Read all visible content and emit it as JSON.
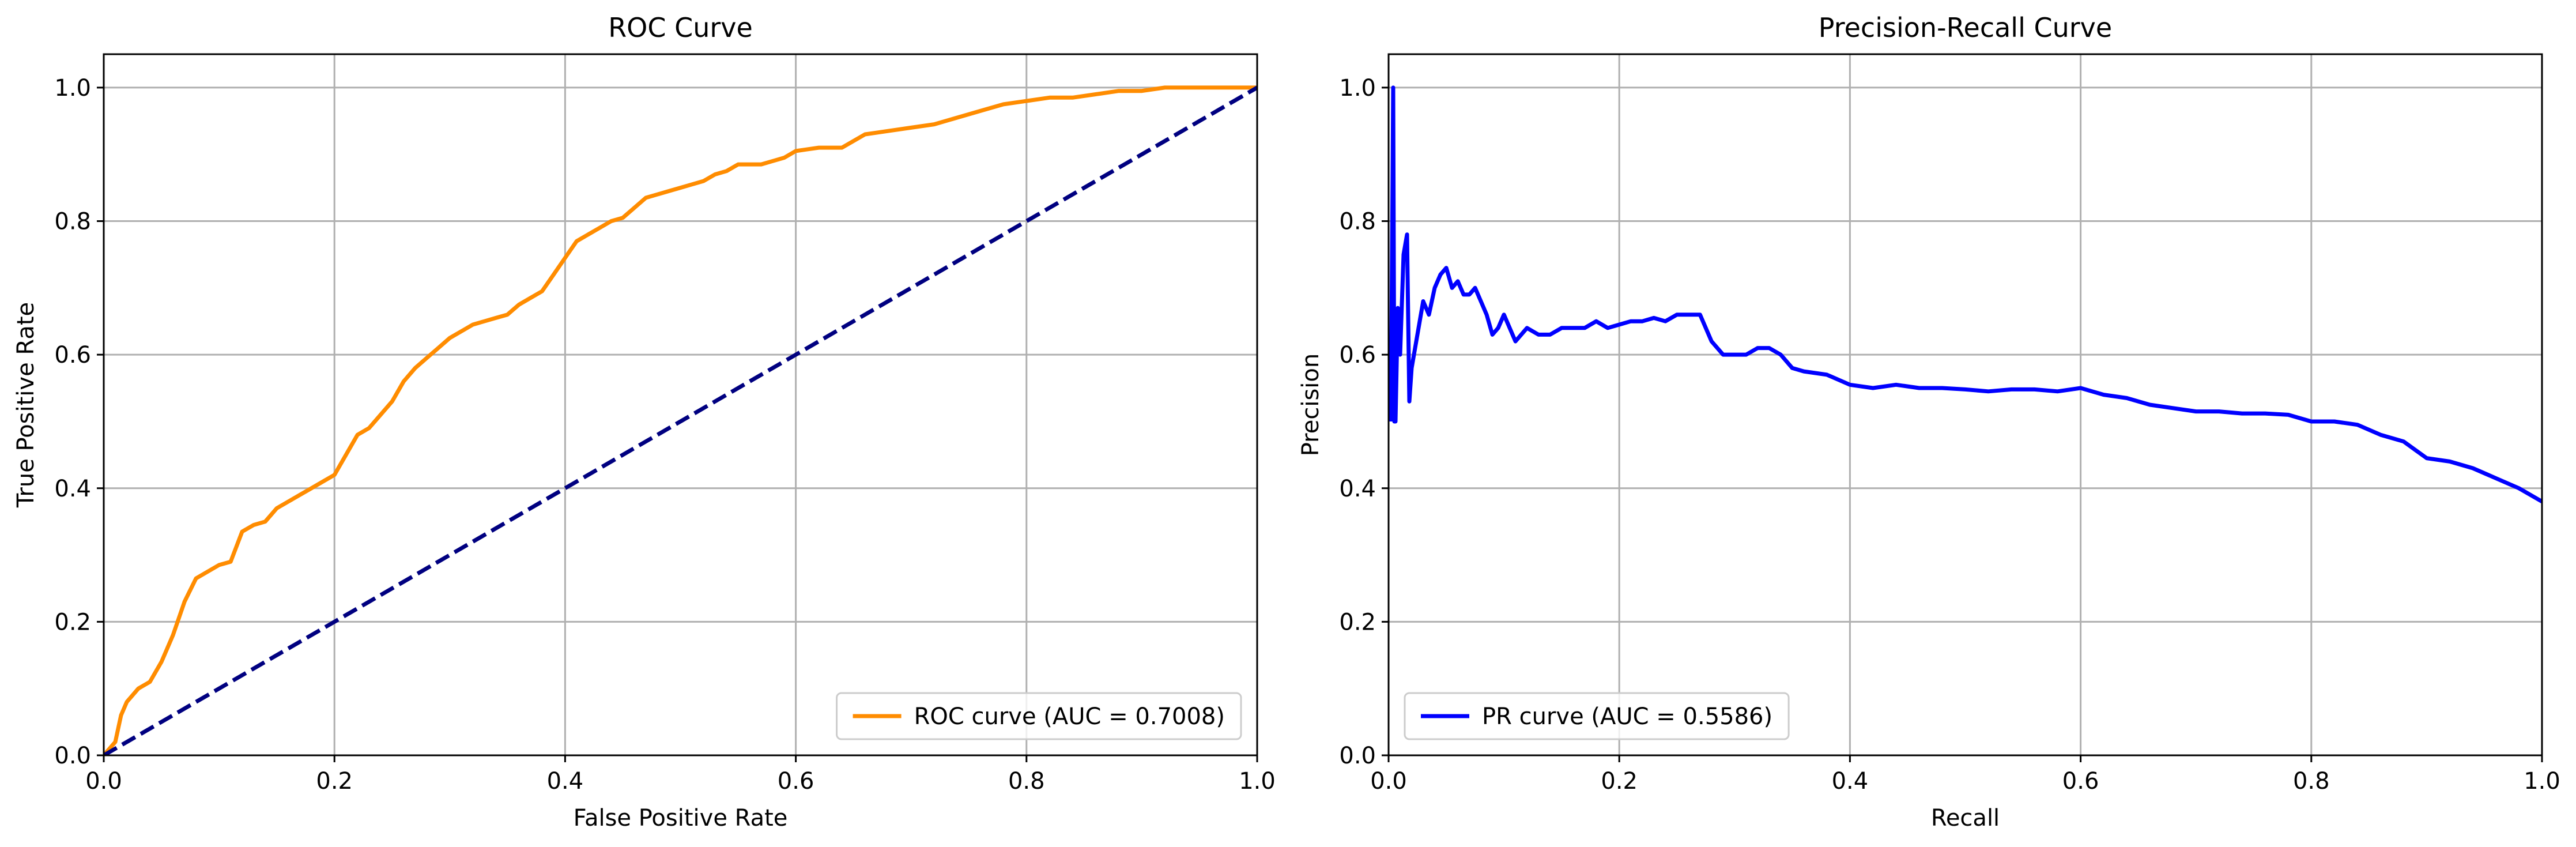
{
  "chart_data": [
    {
      "type": "line",
      "title": "ROC Curve",
      "xlabel": "False Positive Rate",
      "ylabel": "True Positive Rate",
      "xlim": [
        0.0,
        1.0
      ],
      "ylim": [
        0.0,
        1.05
      ],
      "xticks": [
        "0.0",
        "0.2",
        "0.4",
        "0.6",
        "0.8",
        "1.0"
      ],
      "yticks": [
        "0.0",
        "0.2",
        "0.4",
        "0.6",
        "0.8",
        "1.0"
      ],
      "grid": true,
      "legend_position": "lower-right",
      "series": [
        {
          "name": "ROC curve (AUC = 0.7008)",
          "color": "#ff8c00",
          "style": "solid",
          "in_legend": true,
          "x": [
            0.0,
            0.005,
            0.01,
            0.015,
            0.02,
            0.03,
            0.04,
            0.05,
            0.06,
            0.07,
            0.08,
            0.09,
            0.1,
            0.11,
            0.12,
            0.13,
            0.14,
            0.15,
            0.16,
            0.17,
            0.18,
            0.19,
            0.2,
            0.21,
            0.22,
            0.23,
            0.24,
            0.25,
            0.26,
            0.27,
            0.28,
            0.29,
            0.3,
            0.31,
            0.32,
            0.33,
            0.34,
            0.35,
            0.36,
            0.37,
            0.38,
            0.39,
            0.4,
            0.41,
            0.42,
            0.43,
            0.44,
            0.45,
            0.46,
            0.47,
            0.48,
            0.49,
            0.5,
            0.51,
            0.52,
            0.53,
            0.54,
            0.55,
            0.56,
            0.57,
            0.58,
            0.59,
            0.6,
            0.62,
            0.64,
            0.66,
            0.68,
            0.7,
            0.72,
            0.74,
            0.76,
            0.78,
            0.8,
            0.82,
            0.84,
            0.86,
            0.88,
            0.9,
            0.92,
            0.94,
            0.96,
            0.98,
            1.0
          ],
          "y": [
            0.0,
            0.01,
            0.02,
            0.06,
            0.08,
            0.1,
            0.11,
            0.14,
            0.18,
            0.23,
            0.265,
            0.275,
            0.285,
            0.29,
            0.335,
            0.345,
            0.35,
            0.37,
            0.38,
            0.39,
            0.4,
            0.41,
            0.42,
            0.45,
            0.48,
            0.49,
            0.51,
            0.53,
            0.56,
            0.58,
            0.595,
            0.61,
            0.625,
            0.635,
            0.645,
            0.65,
            0.655,
            0.66,
            0.675,
            0.685,
            0.695,
            0.72,
            0.745,
            0.77,
            0.78,
            0.79,
            0.8,
            0.805,
            0.82,
            0.835,
            0.84,
            0.845,
            0.85,
            0.855,
            0.86,
            0.87,
            0.875,
            0.885,
            0.885,
            0.885,
            0.89,
            0.895,
            0.905,
            0.91,
            0.91,
            0.93,
            0.935,
            0.94,
            0.945,
            0.955,
            0.965,
            0.975,
            0.98,
            0.985,
            0.985,
            0.99,
            0.995,
            0.995,
            1.0,
            1.0,
            1.0,
            1.0,
            1.0
          ]
        },
        {
          "name": "",
          "color": "#000080",
          "style": "dashed",
          "in_legend": false,
          "x": [
            0.0,
            1.0
          ],
          "y": [
            0.0,
            1.0
          ]
        }
      ]
    },
    {
      "type": "line",
      "title": "Precision-Recall Curve",
      "xlabel": "Recall",
      "ylabel": "Precision",
      "xlim": [
        0.0,
        1.0
      ],
      "ylim": [
        0.0,
        1.05
      ],
      "xticks": [
        "0.0",
        "0.2",
        "0.4",
        "0.6",
        "0.8",
        "1.0"
      ],
      "yticks": [
        "0.0",
        "0.2",
        "0.4",
        "0.6",
        "0.8",
        "1.0"
      ],
      "grid": true,
      "legend_position": "lower-left",
      "series": [
        {
          "name": "PR curve (AUC = 0.5586)",
          "color": "#0000ff",
          "style": "solid",
          "in_legend": true,
          "x": [
            0.002,
            0.004,
            0.005,
            0.006,
            0.008,
            0.01,
            0.013,
            0.016,
            0.018,
            0.02,
            0.025,
            0.03,
            0.035,
            0.04,
            0.045,
            0.05,
            0.055,
            0.06,
            0.065,
            0.07,
            0.075,
            0.08,
            0.085,
            0.09,
            0.095,
            0.1,
            0.11,
            0.12,
            0.13,
            0.14,
            0.15,
            0.16,
            0.17,
            0.18,
            0.19,
            0.2,
            0.21,
            0.22,
            0.23,
            0.24,
            0.25,
            0.26,
            0.27,
            0.28,
            0.29,
            0.3,
            0.31,
            0.32,
            0.33,
            0.34,
            0.35,
            0.36,
            0.38,
            0.4,
            0.42,
            0.44,
            0.46,
            0.48,
            0.5,
            0.52,
            0.54,
            0.56,
            0.58,
            0.6,
            0.62,
            0.64,
            0.66,
            0.68,
            0.7,
            0.72,
            0.74,
            0.76,
            0.78,
            0.8,
            0.82,
            0.84,
            0.86,
            0.88,
            0.9,
            0.92,
            0.94,
            0.96,
            0.98,
            1.0
          ],
          "y": [
            0.5,
            1.0,
            0.5,
            0.5,
            0.67,
            0.6,
            0.75,
            0.78,
            0.53,
            0.58,
            0.63,
            0.68,
            0.66,
            0.7,
            0.72,
            0.73,
            0.7,
            0.71,
            0.69,
            0.69,
            0.7,
            0.68,
            0.66,
            0.63,
            0.64,
            0.66,
            0.62,
            0.64,
            0.63,
            0.63,
            0.64,
            0.64,
            0.64,
            0.65,
            0.64,
            0.645,
            0.65,
            0.65,
            0.655,
            0.65,
            0.66,
            0.66,
            0.66,
            0.62,
            0.6,
            0.6,
            0.6,
            0.61,
            0.61,
            0.6,
            0.58,
            0.575,
            0.57,
            0.555,
            0.55,
            0.555,
            0.55,
            0.55,
            0.548,
            0.545,
            0.548,
            0.548,
            0.545,
            0.55,
            0.54,
            0.535,
            0.525,
            0.52,
            0.515,
            0.515,
            0.512,
            0.512,
            0.51,
            0.5,
            0.5,
            0.495,
            0.48,
            0.47,
            0.445,
            0.44,
            0.43,
            0.415,
            0.4,
            0.38
          ]
        }
      ]
    }
  ]
}
